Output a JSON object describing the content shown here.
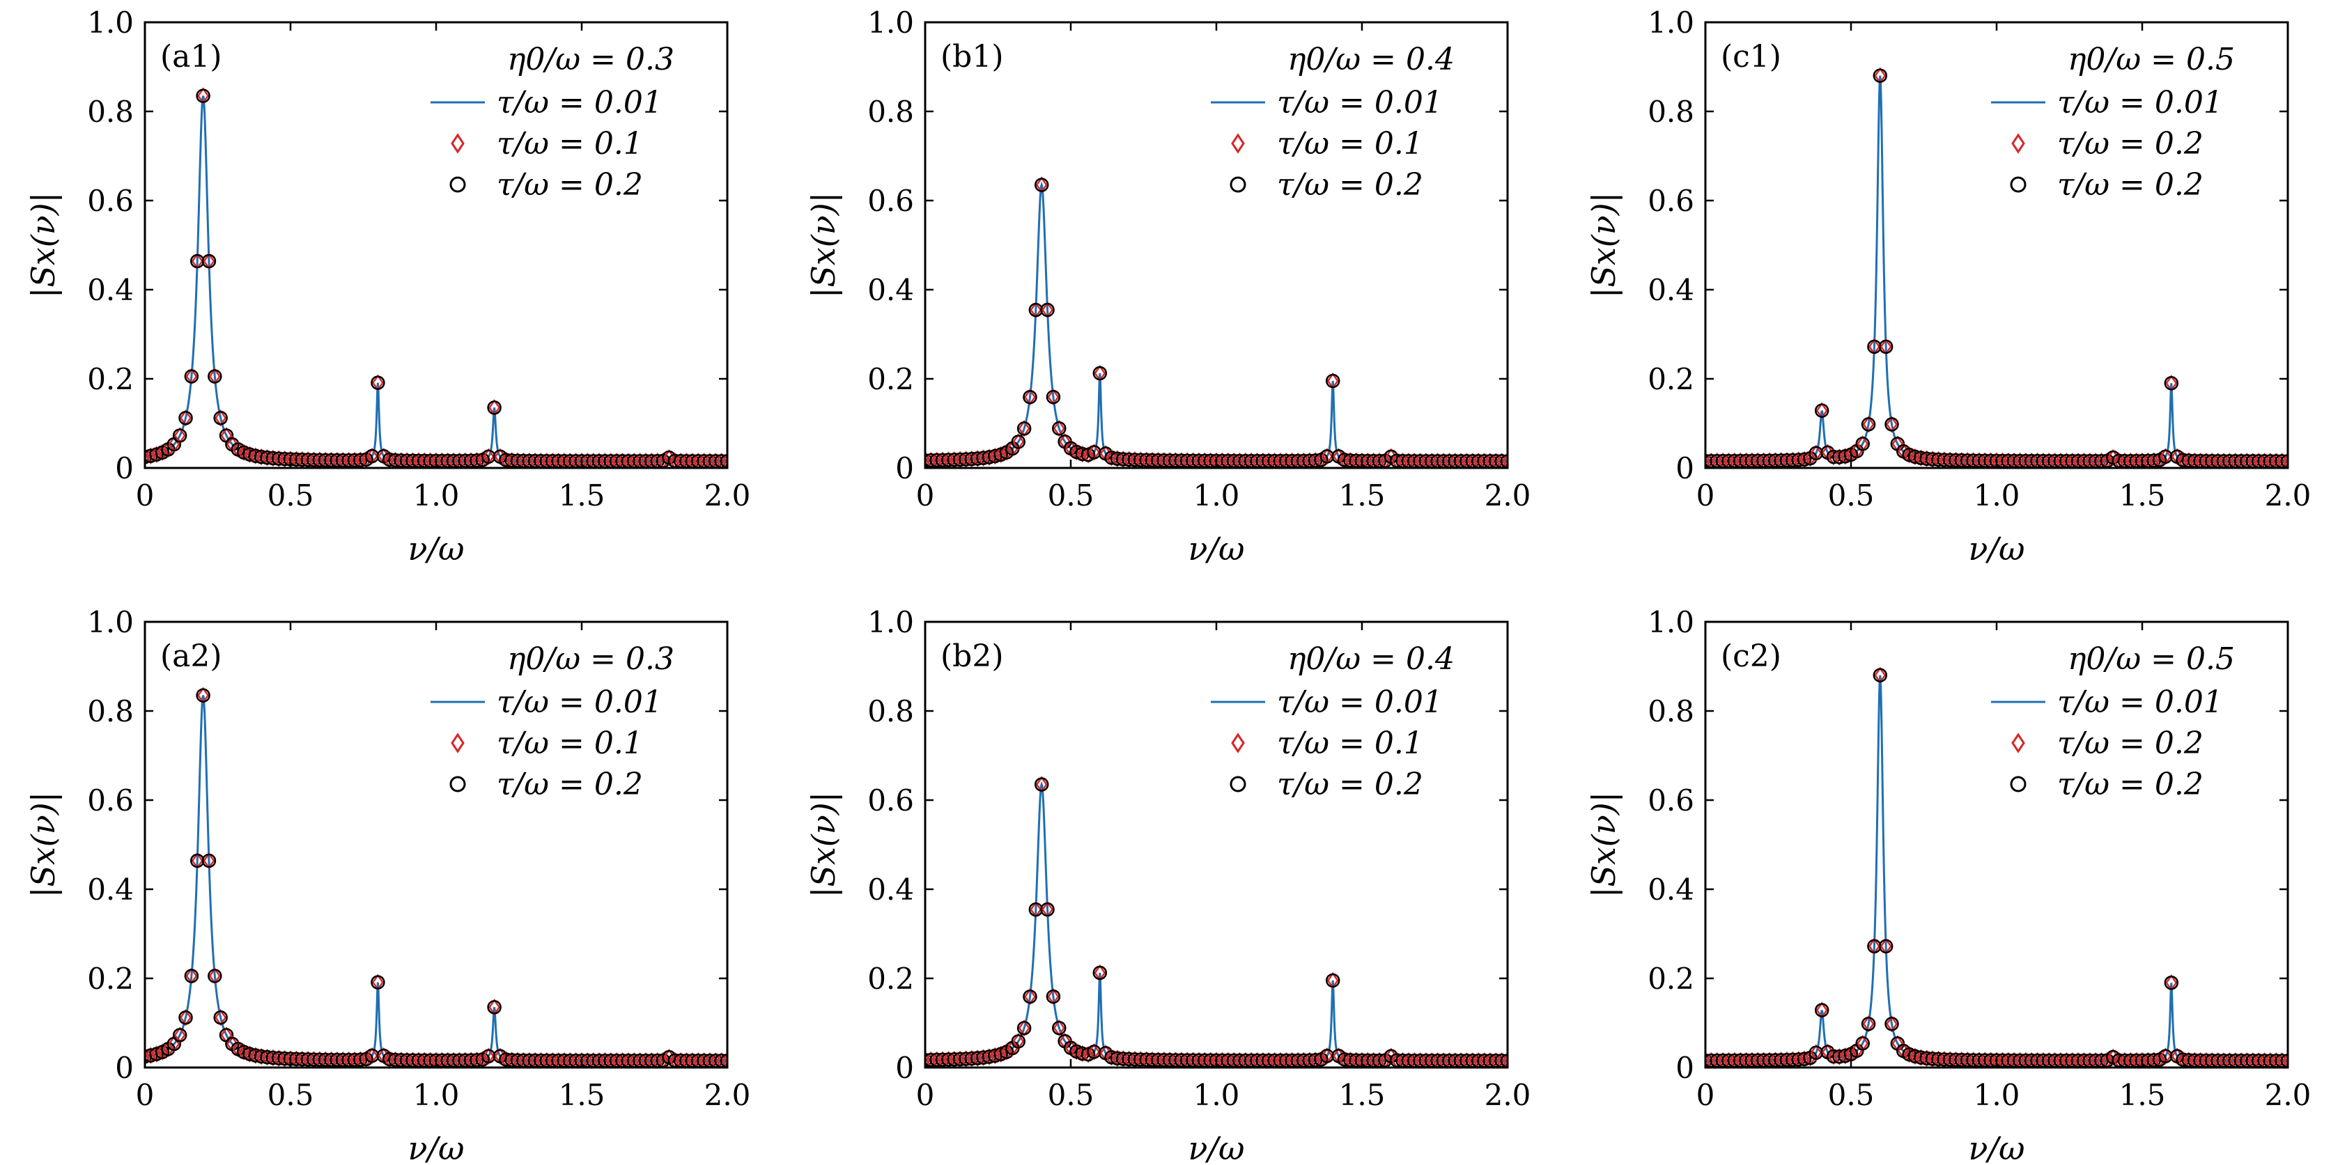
{
  "colors": {
    "line": "#1f6fb4",
    "diamond": "#d62728",
    "circle": "#000000",
    "axis": "#000000"
  },
  "chart_data": [
    {
      "id": "a1",
      "type": "line",
      "panel_label": "(a1)",
      "legend_title": "η0/ω = 0.3",
      "legend": [
        "τ/ω = 0.01",
        "τ/ω = 0.1",
        "τ/ω = 0.2"
      ],
      "xlabel": "ν/ω",
      "ylabel": "|Sx(ν)|",
      "xlim": [
        0,
        2
      ],
      "ylim": [
        0,
        1
      ],
      "xticks": [
        "0",
        "0.5",
        "1.0",
        "1.5",
        "2.0"
      ],
      "yticks": [
        "0",
        "0.2",
        "0.4",
        "0.6",
        "0.8",
        "1.0"
      ],
      "peaks": [
        {
          "x": 0.2,
          "h": 0.82,
          "w": 0.022
        },
        {
          "x": 0.8,
          "h": 0.175,
          "w": 0.005
        },
        {
          "x": 1.2,
          "h": 0.12,
          "w": 0.006
        },
        {
          "x": 1.8,
          "h": 0.008,
          "w": 0.006
        }
      ],
      "baseline": 0.015
    },
    {
      "id": "b1",
      "type": "line",
      "panel_label": "(b1)",
      "legend_title": "η0/ω = 0.4",
      "legend": [
        "τ/ω = 0.01",
        "τ/ω = 0.1",
        "τ/ω = 0.2"
      ],
      "xlabel": "ν/ω",
      "ylabel": "|Sx(ν)|",
      "xlim": [
        0,
        2
      ],
      "ylim": [
        0,
        1
      ],
      "xticks": [
        "0",
        "0.5",
        "1.0",
        "1.5",
        "2.0"
      ],
      "yticks": [
        "0",
        "0.2",
        "0.4",
        "0.6",
        "0.8",
        "1.0"
      ],
      "peaks": [
        {
          "x": 0.4,
          "h": 0.62,
          "w": 0.022
        },
        {
          "x": 0.6,
          "h": 0.19,
          "w": 0.005
        },
        {
          "x": 1.4,
          "h": 0.18,
          "w": 0.005
        },
        {
          "x": 1.6,
          "h": 0.01,
          "w": 0.006
        }
      ],
      "baseline": 0.015
    },
    {
      "id": "c1",
      "type": "line",
      "panel_label": "(c1)",
      "legend_title": "η0/ω = 0.5",
      "legend": [
        "τ/ω = 0.01",
        "τ/ω = 0.2",
        "τ/ω = 0.2"
      ],
      "xlabel": "ν/ω",
      "ylabel": "|Sx(ν)|",
      "xlim": [
        0,
        2
      ],
      "ylim": [
        0,
        1
      ],
      "xticks": [
        "0",
        "0.5",
        "1.0",
        "1.5",
        "2.0"
      ],
      "yticks": [
        "0",
        "0.2",
        "0.4",
        "0.6",
        "0.8",
        "1.0"
      ],
      "peaks": [
        {
          "x": 0.6,
          "h": 0.865,
          "w": 0.013
        },
        {
          "x": 0.4,
          "h": 0.11,
          "w": 0.008
        },
        {
          "x": 1.6,
          "h": 0.175,
          "w": 0.005
        },
        {
          "x": 1.4,
          "h": 0.008,
          "w": 0.006
        }
      ],
      "baseline": 0.015
    },
    {
      "id": "a2",
      "type": "line",
      "panel_label": "(a2)",
      "legend_title": "η0/ω = 0.3",
      "legend": [
        "τ/ω = 0.01",
        "τ/ω = 0.1",
        "τ/ω = 0.2"
      ],
      "xlabel": "ν/ω",
      "ylabel": "|Sx(ν)|",
      "xlim": [
        0,
        2
      ],
      "ylim": [
        0,
        1
      ],
      "xticks": [
        "0",
        "0.5",
        "1.0",
        "1.5",
        "2.0"
      ],
      "yticks": [
        "0",
        "0.2",
        "0.4",
        "0.6",
        "0.8",
        "1.0"
      ],
      "peaks": [
        {
          "x": 0.2,
          "h": 0.82,
          "w": 0.022
        },
        {
          "x": 0.8,
          "h": 0.175,
          "w": 0.005
        },
        {
          "x": 1.2,
          "h": 0.12,
          "w": 0.006
        },
        {
          "x": 1.8,
          "h": 0.008,
          "w": 0.006
        }
      ],
      "baseline": 0.015
    },
    {
      "id": "b2",
      "type": "line",
      "panel_label": "(b2)",
      "legend_title": "η0/ω = 0.4",
      "legend": [
        "τ/ω = 0.01",
        "τ/ω = 0.1",
        "τ/ω = 0.2"
      ],
      "xlabel": "ν/ω",
      "ylabel": "|Sx(ν)|",
      "xlim": [
        0,
        2
      ],
      "ylim": [
        0,
        1
      ],
      "xticks": [
        "0",
        "0.5",
        "1.0",
        "1.5",
        "2.0"
      ],
      "yticks": [
        "0",
        "0.2",
        "0.4",
        "0.6",
        "0.8",
        "1.0"
      ],
      "peaks": [
        {
          "x": 0.4,
          "h": 0.62,
          "w": 0.022
        },
        {
          "x": 0.6,
          "h": 0.19,
          "w": 0.005
        },
        {
          "x": 1.4,
          "h": 0.18,
          "w": 0.005
        },
        {
          "x": 1.6,
          "h": 0.01,
          "w": 0.006
        }
      ],
      "baseline": 0.015
    },
    {
      "id": "c2",
      "type": "line",
      "panel_label": "(c2)",
      "legend_title": "η0/ω = 0.5",
      "legend": [
        "τ/ω = 0.01",
        "τ/ω = 0.2",
        "τ/ω = 0.2"
      ],
      "xlabel": "ν/ω",
      "ylabel": "|Sx(ν)|",
      "xlim": [
        0,
        2
      ],
      "ylim": [
        0,
        1
      ],
      "xticks": [
        "0",
        "0.5",
        "1.0",
        "1.5",
        "2.0"
      ],
      "yticks": [
        "0",
        "0.2",
        "0.4",
        "0.6",
        "0.8",
        "1.0"
      ],
      "peaks": [
        {
          "x": 0.6,
          "h": 0.865,
          "w": 0.013
        },
        {
          "x": 0.4,
          "h": 0.11,
          "w": 0.008
        },
        {
          "x": 1.6,
          "h": 0.175,
          "w": 0.005
        },
        {
          "x": 1.4,
          "h": 0.008,
          "w": 0.006
        }
      ],
      "baseline": 0.015
    }
  ]
}
